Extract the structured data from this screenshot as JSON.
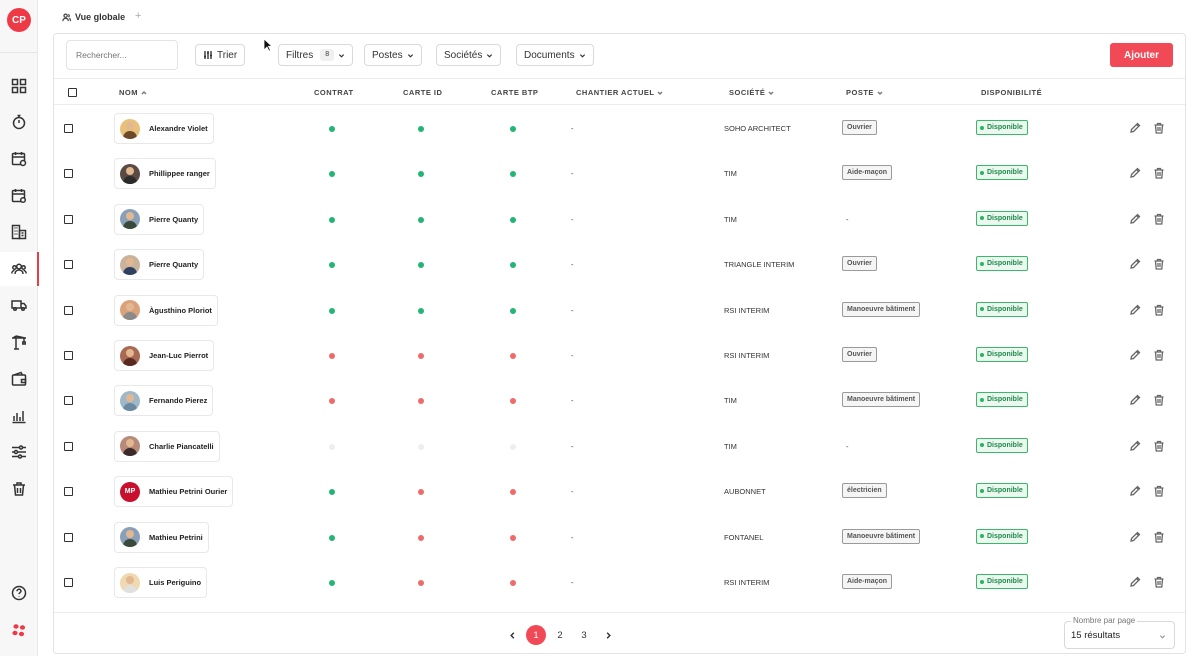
{
  "sidebar": {
    "logo_text": "CP",
    "items": [
      {
        "icon": "dashboard-icon",
        "active": false
      },
      {
        "icon": "stopwatch-icon",
        "active": false
      },
      {
        "icon": "calendar-clock-icon",
        "active": false
      },
      {
        "icon": "calendar-gear-icon",
        "active": false
      },
      {
        "icon": "buildings-icon",
        "active": false
      },
      {
        "icon": "users-icon",
        "active": true
      },
      {
        "icon": "truck-icon",
        "active": false
      },
      {
        "icon": "crane-icon",
        "active": false
      },
      {
        "icon": "wallet-icon",
        "active": false
      },
      {
        "icon": "chart-icon",
        "active": false
      },
      {
        "icon": "sliders-icon",
        "active": false
      },
      {
        "icon": "trash-icon",
        "active": false
      }
    ],
    "bottom": [
      {
        "icon": "help-icon"
      },
      {
        "icon": "brand-dots-icon"
      }
    ]
  },
  "tabs": {
    "active_label": "Vue globale",
    "add_label": "+"
  },
  "toolbar": {
    "search_placeholder": "Rechercher...",
    "sort_label": "Trier",
    "filters_label": "Filtres",
    "filters_count": "8",
    "postes_label": "Postes",
    "societes_label": "Sociétés",
    "documents_label": "Documents",
    "add_label": "Ajouter",
    "accent_color": "#f24957"
  },
  "columns": {
    "nom": "NOM",
    "contrat": "CONTRAT",
    "carte_id": "CARTE ID",
    "carte_btp": "CARTE BTP",
    "chantier": "CHANTIER ACTUEL",
    "societe": "SOCIÉTÉ",
    "poste": "POSTE",
    "disponibilite": "DISPONIBILITÉ"
  },
  "status_colors": {
    "green": "#22b573",
    "red": "#ef6b6b",
    "none": "#eeeeee"
  },
  "rows": [
    {
      "name": "Alexandre Violet",
      "avatar": "photo",
      "contrat": "green",
      "carte_id": "green",
      "carte_btp": "green",
      "chantier": "-",
      "societe": "SOHO ARCHITECT",
      "poste": "Ouvrier",
      "dispo": "Disponible"
    },
    {
      "name": "Phillippee ranger",
      "avatar": "photo",
      "contrat": "green",
      "carte_id": "green",
      "carte_btp": "green",
      "chantier": "-",
      "societe": "TIM",
      "poste": "Aide-maçon",
      "dispo": "Disponible"
    },
    {
      "name": "Pierre Quanty",
      "avatar": "photo",
      "contrat": "green",
      "carte_id": "green",
      "carte_btp": "green",
      "chantier": "-",
      "societe": "TIM",
      "poste": "-",
      "dispo": "Disponible"
    },
    {
      "name": "Pierre Quanty",
      "avatar": "photo",
      "contrat": "green",
      "carte_id": "green",
      "carte_btp": "green",
      "chantier": "-",
      "societe": "TRIANGLE INTERIM",
      "poste": "Ouvrier",
      "dispo": "Disponible"
    },
    {
      "name": "Àgusthino Ploriot",
      "avatar": "photo",
      "contrat": "green",
      "carte_id": "green",
      "carte_btp": "green",
      "chantier": "-",
      "societe": "RSI INTERIM",
      "poste": "Manoeuvre bâtiment",
      "dispo": "Disponible"
    },
    {
      "name": "Jean-Luc Pierrot",
      "avatar": "photo",
      "contrat": "red",
      "carte_id": "red",
      "carte_btp": "red",
      "chantier": "-",
      "societe": "RSI INTERIM",
      "poste": "Ouvrier",
      "dispo": "Disponible"
    },
    {
      "name": "Fernando Pierez",
      "avatar": "photo",
      "contrat": "red",
      "carte_id": "red",
      "carte_btp": "red",
      "chantier": "-",
      "societe": "TIM",
      "poste": "Manoeuvre bâtiment",
      "dispo": "Disponible"
    },
    {
      "name": "Charlie Piancatelli",
      "avatar": "photo",
      "contrat": "none",
      "carte_id": "none",
      "carte_btp": "none",
      "chantier": "-",
      "societe": "TIM",
      "poste": "-",
      "dispo": "Disponible"
    },
    {
      "name": "Mathieu Petrini Ourier",
      "avatar": "MP",
      "contrat": "green",
      "carte_id": "red",
      "carte_btp": "red",
      "chantier": "-",
      "societe": "AUBONNET",
      "poste": "électricien",
      "dispo": "Disponible"
    },
    {
      "name": "Mathieu Petrini",
      "avatar": "photo",
      "contrat": "green",
      "carte_id": "red",
      "carte_btp": "red",
      "chantier": "-",
      "societe": "FONTANEL",
      "poste": "Manoeuvre bâtiment",
      "dispo": "Disponible"
    },
    {
      "name": "Luis Periguino",
      "avatar": "photo",
      "contrat": "green",
      "carte_id": "red",
      "carte_btp": "red",
      "chantier": "-",
      "societe": "RSI INTERIM",
      "poste": "Aide-maçon",
      "dispo": "Disponible"
    }
  ],
  "pagination": {
    "pages": [
      "1",
      "2",
      "3"
    ],
    "current": "1",
    "per_page_label": "Nombre par page",
    "per_page_value": "15 résultats"
  }
}
